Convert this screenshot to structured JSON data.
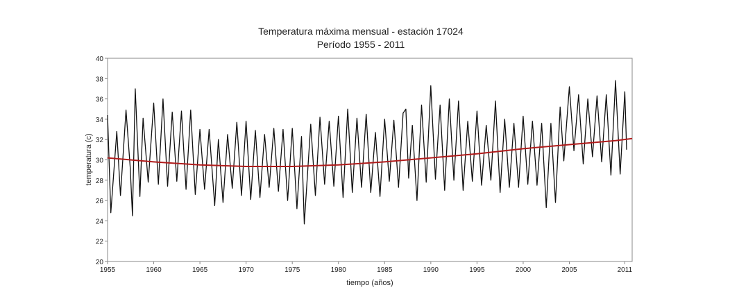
{
  "chart_data": {
    "type": "line",
    "title": "Temperatura máxima mensual - estación 17024",
    "subtitle": "Período 1955 - 2011",
    "xlabel": "tiempo (años)",
    "ylabel": "temperatura (c)",
    "xlim": [
      1955,
      2011.8
    ],
    "ylim": [
      20,
      40
    ],
    "xticks": [
      "1955",
      "1960",
      "1965",
      "1970",
      "1975",
      "1980",
      "1985",
      "1990",
      "1995",
      "2000",
      "2005",
      "2011"
    ],
    "yticks": [
      "20",
      "22",
      "24",
      "26",
      "28",
      "30",
      "32",
      "34",
      "36",
      "38",
      "40"
    ],
    "grid": false,
    "legend": "none",
    "colors": {
      "series": "#111111",
      "trend": "#b01c1c",
      "frame": "#888888"
    },
    "series": [
      {
        "values": [
          [
            1955.0,
            34.4
          ],
          [
            1955.35,
            24.8
          ],
          [
            1956.0,
            32.8
          ],
          [
            1956.4,
            26.5
          ],
          [
            1957.0,
            34.9
          ],
          [
            1957.45,
            29.3
          ],
          [
            1957.7,
            24.5
          ],
          [
            1958.0,
            37.0
          ],
          [
            1958.5,
            26.4
          ],
          [
            1958.85,
            34.1
          ],
          [
            1959.4,
            27.8
          ],
          [
            1960.0,
            35.6
          ],
          [
            1960.5,
            27.6
          ],
          [
            1961.0,
            36.0
          ],
          [
            1961.5,
            27.4
          ],
          [
            1962.0,
            34.7
          ],
          [
            1962.5,
            27.9
          ],
          [
            1963.0,
            34.8
          ],
          [
            1963.5,
            27.1
          ],
          [
            1964.0,
            34.9
          ],
          [
            1964.5,
            26.6
          ],
          [
            1965.0,
            33.0
          ],
          [
            1965.5,
            27.1
          ],
          [
            1966.0,
            33.0
          ],
          [
            1966.6,
            25.5
          ],
          [
            1967.0,
            32.0
          ],
          [
            1967.5,
            25.8
          ],
          [
            1968.0,
            32.5
          ],
          [
            1968.5,
            27.2
          ],
          [
            1969.0,
            33.7
          ],
          [
            1969.5,
            26.5
          ],
          [
            1970.0,
            33.8
          ],
          [
            1970.5,
            26.1
          ],
          [
            1971.0,
            32.9
          ],
          [
            1971.5,
            26.3
          ],
          [
            1972.0,
            32.5
          ],
          [
            1972.5,
            27.3
          ],
          [
            1973.0,
            33.1
          ],
          [
            1973.5,
            26.9
          ],
          [
            1974.0,
            33.0
          ],
          [
            1974.5,
            26.0
          ],
          [
            1975.0,
            33.1
          ],
          [
            1975.5,
            25.2
          ],
          [
            1976.0,
            32.3
          ],
          [
            1976.3,
            23.7
          ],
          [
            1977.0,
            33.5
          ],
          [
            1977.5,
            26.5
          ],
          [
            1978.0,
            34.2
          ],
          [
            1978.5,
            27.6
          ],
          [
            1979.0,
            33.8
          ],
          [
            1979.5,
            27.4
          ],
          [
            1980.0,
            34.3
          ],
          [
            1980.5,
            26.3
          ],
          [
            1981.0,
            35.0
          ],
          [
            1981.5,
            26.8
          ],
          [
            1982.0,
            34.1
          ],
          [
            1982.5,
            27.3
          ],
          [
            1983.0,
            34.5
          ],
          [
            1983.5,
            26.8
          ],
          [
            1984.0,
            32.7
          ],
          [
            1984.5,
            26.4
          ],
          [
            1985.0,
            34.0
          ],
          [
            1985.5,
            27.9
          ],
          [
            1986.0,
            33.9
          ],
          [
            1986.5,
            27.3
          ],
          [
            1987.0,
            34.6
          ],
          [
            1987.3,
            35.0
          ],
          [
            1987.6,
            28.2
          ],
          [
            1988.0,
            33.4
          ],
          [
            1988.5,
            26.0
          ],
          [
            1989.0,
            35.4
          ],
          [
            1989.5,
            27.8
          ],
          [
            1990.0,
            37.3
          ],
          [
            1990.5,
            28.1
          ],
          [
            1991.0,
            35.4
          ],
          [
            1991.5,
            27.0
          ],
          [
            1992.0,
            36.0
          ],
          [
            1992.5,
            28.0
          ],
          [
            1993.0,
            35.8
          ],
          [
            1993.5,
            27.0
          ],
          [
            1994.0,
            33.8
          ],
          [
            1994.5,
            27.9
          ],
          [
            1995.0,
            34.8
          ],
          [
            1995.5,
            27.5
          ],
          [
            1996.0,
            33.4
          ],
          [
            1996.5,
            28.0
          ],
          [
            1997.0,
            35.8
          ],
          [
            1997.5,
            26.8
          ],
          [
            1998.0,
            34.0
          ],
          [
            1998.5,
            27.3
          ],
          [
            1999.0,
            33.6
          ],
          [
            1999.5,
            27.3
          ],
          [
            2000.0,
            34.3
          ],
          [
            2000.5,
            27.6
          ],
          [
            2001.0,
            33.8
          ],
          [
            2001.5,
            27.5
          ],
          [
            2002.0,
            33.6
          ],
          [
            2002.5,
            25.3
          ],
          [
            2003.0,
            33.6
          ],
          [
            2003.5,
            25.8
          ],
          [
            2004.0,
            35.2
          ],
          [
            2004.4,
            29.9
          ],
          [
            2005.0,
            37.2
          ],
          [
            2005.5,
            30.9
          ],
          [
            2006.0,
            36.4
          ],
          [
            2006.5,
            29.6
          ],
          [
            2007.0,
            36.0
          ],
          [
            2007.5,
            30.3
          ],
          [
            2008.0,
            36.3
          ],
          [
            2008.5,
            29.8
          ],
          [
            2009.0,
            36.4
          ],
          [
            2009.5,
            28.5
          ],
          [
            2010.0,
            37.8
          ],
          [
            2010.5,
            28.6
          ],
          [
            2011.0,
            36.7
          ],
          [
            2011.2,
            31.0
          ]
        ]
      },
      {
        "values": [
          [
            1955,
            30.2
          ],
          [
            1960,
            29.8
          ],
          [
            1965,
            29.5
          ],
          [
            1970,
            29.35
          ],
          [
            1975,
            29.35
          ],
          [
            1980,
            29.5
          ],
          [
            1985,
            29.8
          ],
          [
            1990,
            30.2
          ],
          [
            1995,
            30.6
          ],
          [
            2000,
            31.1
          ],
          [
            2005,
            31.5
          ],
          [
            2010,
            31.9
          ],
          [
            2011.8,
            32.1
          ]
        ]
      }
    ]
  }
}
